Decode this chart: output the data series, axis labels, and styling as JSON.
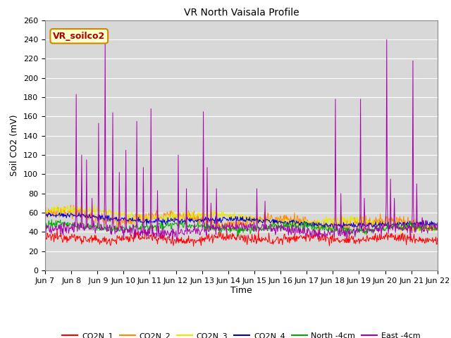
{
  "title": "VR North Vaisala Profile",
  "ylabel": "Soil CO2 (mV)",
  "xlabel": "Time",
  "annotation": "VR_soilco2",
  "ylim": [
    0,
    260
  ],
  "yticks": [
    0,
    20,
    40,
    60,
    80,
    100,
    120,
    140,
    160,
    180,
    200,
    220,
    240,
    260
  ],
  "xtick_labels": [
    "Jun 7",
    "Jun 8",
    " Jun 9",
    "Jun 10",
    "Jun 11",
    "Jun 12",
    "Jun 13",
    "Jun 14",
    "Jun 15",
    "Jun 16",
    "Jun 17",
    "Jun 18",
    "Jun 19",
    "Jun 20",
    "Jun 21",
    "Jun 22"
  ],
  "plot_bg_color": "#d8d8d8",
  "colors": {
    "CO2N_1": "#ff0000",
    "CO2N_2": "#ff8c00",
    "CO2N_3": "#e8e800",
    "CO2N_4": "#0000cc",
    "North_4cm": "#00aa00",
    "East_4cm": "#aa00aa"
  },
  "annotation_box_color": "#ffffcc",
  "annotation_border_color": "#cc8800",
  "annotation_text_color": "#aa0000",
  "grid_color": "#ffffff",
  "title_fontsize": 10,
  "axis_label_fontsize": 9,
  "tick_fontsize": 8,
  "legend_fontsize": 8
}
